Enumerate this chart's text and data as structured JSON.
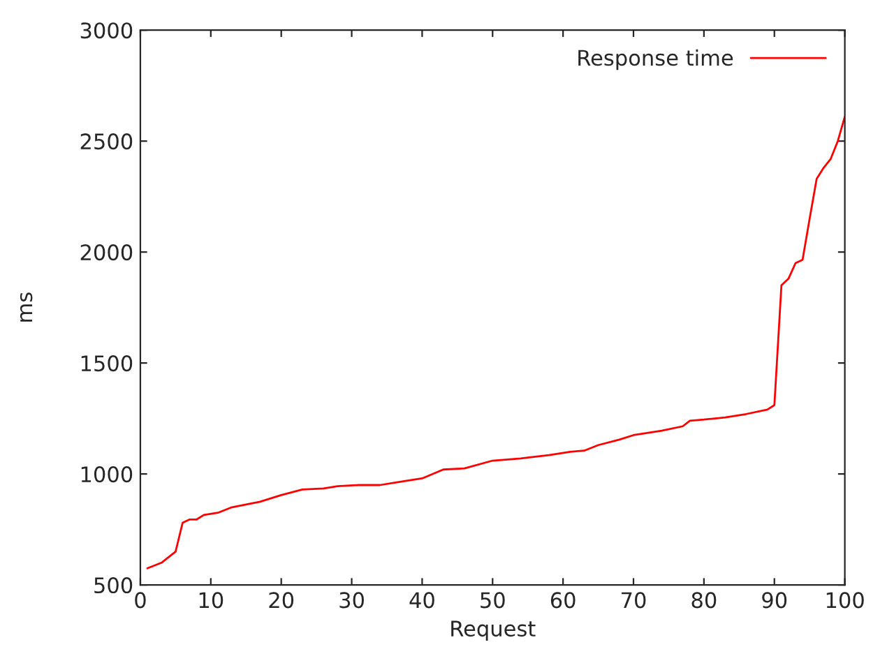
{
  "chart_data": {
    "type": "line",
    "xlabel": "Request",
    "ylabel": "ms",
    "xlim": [
      0,
      100
    ],
    "ylim": [
      500,
      3000
    ],
    "xticks": [
      0,
      10,
      20,
      30,
      40,
      50,
      60,
      70,
      80,
      90,
      100
    ],
    "yticks": [
      500,
      1000,
      1500,
      2000,
      2500,
      3000
    ],
    "grid": false,
    "legend": "top right",
    "marker": "none",
    "line_style": "solid",
    "x": [
      1,
      3,
      4,
      5,
      6,
      7,
      8,
      9,
      11,
      13,
      17,
      20,
      23,
      26,
      28,
      31,
      34,
      37,
      40,
      43,
      46,
      50,
      54,
      58,
      61,
      63,
      65,
      68,
      70,
      74,
      77,
      78,
      80,
      83,
      86,
      89,
      90,
      91,
      92,
      93,
      94,
      95,
      96,
      97,
      98,
      99,
      100
    ],
    "series": [
      {
        "name": "Response time",
        "color": "#ff0000",
        "values": [
          575,
          600,
          625,
          650,
          780,
          795,
          795,
          815,
          825,
          850,
          875,
          905,
          930,
          935,
          945,
          950,
          950,
          965,
          980,
          1020,
          1025,
          1060,
          1070,
          1085,
          1100,
          1105,
          1130,
          1155,
          1175,
          1195,
          1215,
          1240,
          1245,
          1255,
          1270,
          1290,
          1310,
          1850,
          1880,
          1950,
          1965,
          2150,
          2330,
          2380,
          2420,
          2500,
          2610
        ]
      }
    ]
  }
}
